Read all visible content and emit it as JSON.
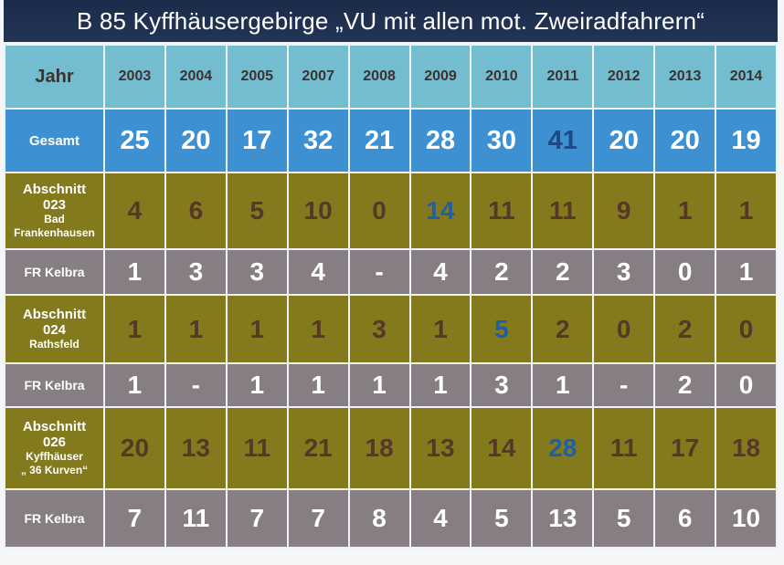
{
  "title": "B 85 Kyffhäusergebirge „VU mit allen mot. Zweiradfahrern“",
  "header": {
    "label": "Jahr",
    "years": [
      "2003",
      "2004",
      "2005",
      "2007",
      "2008",
      "2009",
      "2010",
      "2011",
      "2012",
      "2013",
      "2014"
    ]
  },
  "rows": [
    {
      "label": "Gesamt",
      "sub": [],
      "values": [
        "25",
        "20",
        "17",
        "32",
        "21",
        "28",
        "30",
        "41",
        "20",
        "20",
        "19"
      ]
    },
    {
      "label": "Abschnitt",
      "sub": [
        "023",
        "Bad",
        "Frankenhausen"
      ],
      "values": [
        "4",
        "6",
        "5",
        "10",
        "0",
        "14",
        "11",
        "11",
        "9",
        "1",
        "1"
      ]
    },
    {
      "label": "FR Kelbra",
      "sub": [],
      "values": [
        "1",
        "3",
        "3",
        "4",
        "-",
        "4",
        "2",
        "2",
        "3",
        "0",
        "1"
      ]
    },
    {
      "label": "Abschnitt",
      "sub": [
        "024",
        "Rathsfeld"
      ],
      "values": [
        "1",
        "1",
        "1",
        "1",
        "3",
        "1",
        "5",
        "2",
        "0",
        "2",
        "0"
      ]
    },
    {
      "label": "FR Kelbra",
      "sub": [],
      "values": [
        "1",
        "-",
        "1",
        "1",
        "1",
        "1",
        "3",
        "1",
        "-",
        "2",
        "0"
      ]
    },
    {
      "label": "Abschnitt",
      "sub": [
        "026",
        "Kyffhäuser",
        "„ 36 Kurven“"
      ],
      "values": [
        "20",
        "13",
        "11",
        "21",
        "18",
        "13",
        "14",
        "28",
        "11",
        "17",
        "18"
      ]
    },
    {
      "label": "FR Kelbra",
      "sub": [],
      "values": [
        "7",
        "11",
        "7",
        "7",
        "8",
        "4",
        "5",
        "13",
        "5",
        "6",
        "10"
      ]
    }
  ],
  "highlights": [
    {
      "row": 0,
      "col": 7,
      "color": "#1c4a86"
    },
    {
      "row": 1,
      "col": 5,
      "color": "#1f5fa8"
    },
    {
      "row": 3,
      "col": 6,
      "color": "#1f5fa8"
    },
    {
      "row": 5,
      "col": 7,
      "color": "#1f5fa8"
    }
  ],
  "colors": {
    "title_bg": "#1c2b4a",
    "header_bg": "#74bccf",
    "total_bg": "#3d91d3",
    "section_bg": "#837a1e",
    "fr_bg": "#877e84"
  }
}
